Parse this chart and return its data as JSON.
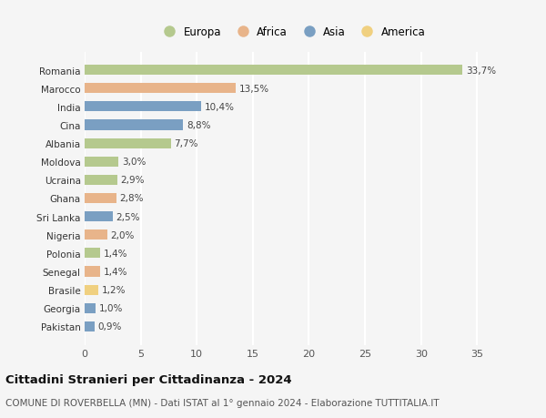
{
  "countries": [
    "Romania",
    "Marocco",
    "India",
    "Cina",
    "Albania",
    "Moldova",
    "Ucraina",
    "Ghana",
    "Sri Lanka",
    "Nigeria",
    "Polonia",
    "Senegal",
    "Brasile",
    "Georgia",
    "Pakistan"
  ],
  "values": [
    33.7,
    13.5,
    10.4,
    8.8,
    7.7,
    3.0,
    2.9,
    2.8,
    2.5,
    2.0,
    1.4,
    1.4,
    1.2,
    1.0,
    0.9
  ],
  "labels": [
    "33,7%",
    "13,5%",
    "10,4%",
    "8,8%",
    "7,7%",
    "3,0%",
    "2,9%",
    "2,8%",
    "2,5%",
    "2,0%",
    "1,4%",
    "1,4%",
    "1,2%",
    "1,0%",
    "0,9%"
  ],
  "continents": [
    "Europa",
    "Africa",
    "Asia",
    "Asia",
    "Europa",
    "Europa",
    "Europa",
    "Africa",
    "Asia",
    "Africa",
    "Europa",
    "Africa",
    "America",
    "Asia",
    "Asia"
  ],
  "continent_colors": {
    "Europa": "#b5c98e",
    "Africa": "#e8b48a",
    "Asia": "#7a9fc2",
    "America": "#f0d080"
  },
  "legend_order": [
    "Europa",
    "Africa",
    "Asia",
    "America"
  ],
  "xlim": [
    0,
    37
  ],
  "xticks": [
    0,
    5,
    10,
    15,
    20,
    25,
    30,
    35
  ],
  "title": "Cittadini Stranieri per Cittadinanza - 2024",
  "subtitle": "COMUNE DI ROVERBELLA (MN) - Dati ISTAT al 1° gennaio 2024 - Elaborazione TUTTITALIA.IT",
  "background_color": "#f5f5f5",
  "grid_color": "#ffffff",
  "bar_height": 0.55,
  "label_fontsize": 7.5,
  "ytick_fontsize": 7.5,
  "xtick_fontsize": 8.0,
  "title_fontsize": 9.5,
  "subtitle_fontsize": 7.5,
  "legend_fontsize": 8.5
}
